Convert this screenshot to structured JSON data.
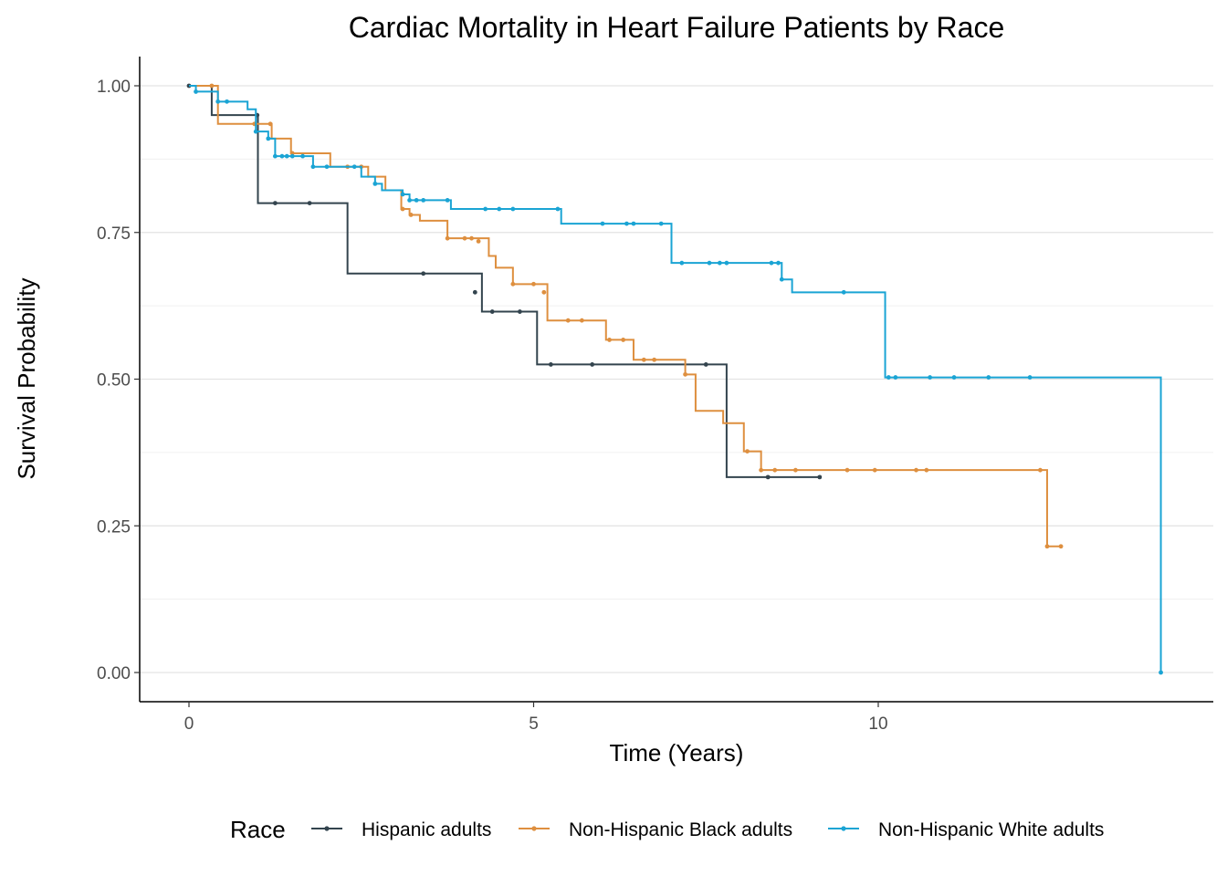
{
  "chart_data": {
    "type": "line",
    "title": "Cardiac Mortality in Heart Failure Patients by Race",
    "xlabel": "Time (Years)",
    "ylabel": "Survival Probability",
    "xlim": [
      -0.7,
      14.9
    ],
    "ylim": [
      -0.05,
      1.05
    ],
    "x_ticks": [
      0,
      5,
      10
    ],
    "x_tick_labels": [
      "0",
      "5",
      "10"
    ],
    "y_ticks": [
      0,
      0.25,
      0.5,
      0.75,
      1.0
    ],
    "y_tick_labels": [
      "0.00",
      "0.25",
      "0.50",
      "0.75",
      "1.00"
    ],
    "grid": "horizontal",
    "legend": {
      "title": "Race",
      "position": "bottom"
    },
    "series": [
      {
        "name": "Hispanic adults",
        "color": "#33444e",
        "steps": [
          [
            0,
            1.0
          ],
          [
            0.33,
            0.95
          ],
          [
            1.0,
            0.8
          ],
          [
            2.3,
            0.68
          ],
          [
            4.25,
            0.615
          ],
          [
            5.05,
            0.525
          ],
          [
            7.8,
            0.333
          ]
        ],
        "end_x": 9.15,
        "censored": [
          [
            0,
            1.0
          ],
          [
            0.99,
            0.95
          ],
          [
            1.25,
            0.8
          ],
          [
            1.75,
            0.8
          ],
          [
            3.4,
            0.68
          ],
          [
            4.15,
            0.648
          ],
          [
            4.4,
            0.615
          ],
          [
            4.8,
            0.615
          ],
          [
            5.25,
            0.525
          ],
          [
            5.85,
            0.525
          ],
          [
            7.5,
            0.525
          ],
          [
            8.4,
            0.333
          ],
          [
            9.15,
            0.333
          ]
        ]
      },
      {
        "name": "Non-Hispanic Black adults",
        "color": "#de8f3f",
        "steps": [
          [
            0,
            1.0
          ],
          [
            0.42,
            0.935
          ],
          [
            1.2,
            0.91
          ],
          [
            1.48,
            0.885
          ],
          [
            2.05,
            0.862
          ],
          [
            2.6,
            0.845
          ],
          [
            2.85,
            0.822
          ],
          [
            3.08,
            0.79
          ],
          [
            3.2,
            0.78
          ],
          [
            3.35,
            0.77
          ],
          [
            3.75,
            0.74
          ],
          [
            4.35,
            0.71
          ],
          [
            4.45,
            0.69
          ],
          [
            4.7,
            0.662
          ],
          [
            5.2,
            0.6
          ],
          [
            6.05,
            0.567
          ],
          [
            6.45,
            0.533
          ],
          [
            7.2,
            0.508
          ],
          [
            7.35,
            0.446
          ],
          [
            7.75,
            0.425
          ],
          [
            8.05,
            0.377
          ],
          [
            8.3,
            0.345
          ],
          [
            12.45,
            0.215
          ]
        ],
        "end_x": 12.65,
        "censored": [
          [
            0.33,
            1.0
          ],
          [
            0.95,
            0.935
          ],
          [
            1.18,
            0.935
          ],
          [
            1.5,
            0.885
          ],
          [
            2.3,
            0.862
          ],
          [
            2.5,
            0.862
          ],
          [
            3.1,
            0.79
          ],
          [
            3.22,
            0.78
          ],
          [
            3.75,
            0.74
          ],
          [
            4.0,
            0.74
          ],
          [
            4.1,
            0.74
          ],
          [
            4.2,
            0.735
          ],
          [
            4.7,
            0.662
          ],
          [
            5.0,
            0.662
          ],
          [
            5.15,
            0.648
          ],
          [
            5.5,
            0.6
          ],
          [
            5.7,
            0.6
          ],
          [
            6.1,
            0.567
          ],
          [
            6.3,
            0.567
          ],
          [
            6.6,
            0.533
          ],
          [
            6.75,
            0.533
          ],
          [
            7.2,
            0.508
          ],
          [
            8.1,
            0.377
          ],
          [
            8.3,
            0.345
          ],
          [
            8.5,
            0.345
          ],
          [
            8.8,
            0.345
          ],
          [
            9.55,
            0.345
          ],
          [
            9.95,
            0.345
          ],
          [
            10.55,
            0.345
          ],
          [
            10.7,
            0.345
          ],
          [
            12.35,
            0.345
          ],
          [
            12.45,
            0.215
          ],
          [
            12.65,
            0.215
          ]
        ]
      },
      {
        "name": "Non-Hispanic White adults",
        "color": "#1aa4d4",
        "steps": [
          [
            0,
            1.0
          ],
          [
            0.1,
            0.99
          ],
          [
            0.42,
            0.973
          ],
          [
            0.85,
            0.96
          ],
          [
            0.97,
            0.922
          ],
          [
            1.15,
            0.91
          ],
          [
            1.25,
            0.88
          ],
          [
            1.8,
            0.862
          ],
          [
            2.5,
            0.845
          ],
          [
            2.7,
            0.833
          ],
          [
            2.8,
            0.822
          ],
          [
            3.1,
            0.815
          ],
          [
            3.2,
            0.805
          ],
          [
            3.8,
            0.79
          ],
          [
            5.4,
            0.765
          ],
          [
            7.0,
            0.698
          ],
          [
            8.6,
            0.67
          ],
          [
            8.75,
            0.648
          ],
          [
            10.1,
            0.503
          ],
          [
            14.1,
            0.0
          ]
        ],
        "end_x": 14.1,
        "censored": [
          [
            0.1,
            0.99
          ],
          [
            0.42,
            0.973
          ],
          [
            0.55,
            0.973
          ],
          [
            0.97,
            0.922
          ],
          [
            1.15,
            0.91
          ],
          [
            1.25,
            0.88
          ],
          [
            1.35,
            0.88
          ],
          [
            1.42,
            0.88
          ],
          [
            1.5,
            0.88
          ],
          [
            1.65,
            0.88
          ],
          [
            1.8,
            0.862
          ],
          [
            2.0,
            0.862
          ],
          [
            2.4,
            0.862
          ],
          [
            2.7,
            0.833
          ],
          [
            3.1,
            0.815
          ],
          [
            3.2,
            0.805
          ],
          [
            3.3,
            0.805
          ],
          [
            3.4,
            0.805
          ],
          [
            3.75,
            0.805
          ],
          [
            4.3,
            0.79
          ],
          [
            4.5,
            0.79
          ],
          [
            4.7,
            0.79
          ],
          [
            5.35,
            0.79
          ],
          [
            6.0,
            0.765
          ],
          [
            6.35,
            0.765
          ],
          [
            6.45,
            0.765
          ],
          [
            6.85,
            0.765
          ],
          [
            7.15,
            0.698
          ],
          [
            7.55,
            0.698
          ],
          [
            7.7,
            0.698
          ],
          [
            7.8,
            0.698
          ],
          [
            8.45,
            0.698
          ],
          [
            8.55,
            0.698
          ],
          [
            8.6,
            0.67
          ],
          [
            9.5,
            0.648
          ],
          [
            10.15,
            0.503
          ],
          [
            10.25,
            0.503
          ],
          [
            10.75,
            0.503
          ],
          [
            11.1,
            0.503
          ],
          [
            11.6,
            0.503
          ],
          [
            12.2,
            0.503
          ],
          [
            14.1,
            0.0
          ]
        ]
      }
    ]
  }
}
